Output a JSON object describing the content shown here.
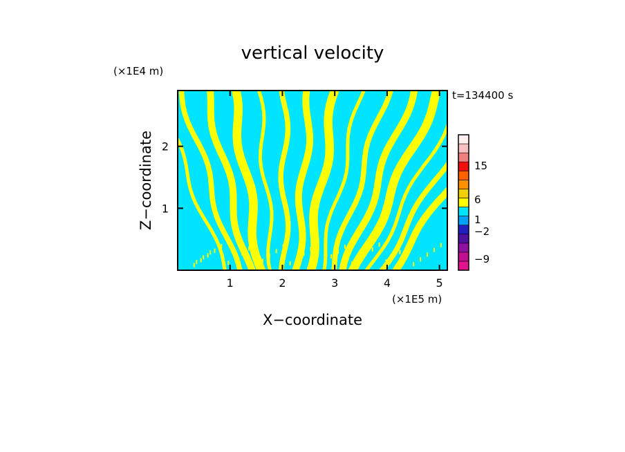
{
  "chart_data": {
    "type": "heatmap",
    "title": "vertical velocity",
    "xlabel": "X−coordinate",
    "ylabel": "Z−coordinate",
    "x_unit": "(×1E5 m)",
    "y_unit": "(×1E4 m)",
    "time_label": "t=134400 s",
    "xlim": [
      0,
      5.15
    ],
    "ylim": [
      0,
      2.9
    ],
    "x_ticks": [
      1,
      2,
      3,
      4,
      5
    ],
    "y_ticks": [
      1,
      2
    ],
    "field_colors": {
      "positive": "#ffff00",
      "negative": "#00e5ff"
    },
    "colorbar": {
      "tick_labels": [
        "15",
        "6",
        "1",
        "−2",
        "−9"
      ],
      "levels": [
        {
          "color": "#e0148c"
        },
        {
          "color": "#c01090"
        },
        {
          "color": "#9010a0"
        },
        {
          "color": "#5010a0"
        },
        {
          "color": "#2020c0"
        },
        {
          "color": "#00a0ff"
        },
        {
          "color": "#00e5ff"
        },
        {
          "color": "#ffff00"
        },
        {
          "color": "#f0d000"
        },
        {
          "color": "#ff9000"
        },
        {
          "color": "#ff6000"
        },
        {
          "color": "#f01010"
        },
        {
          "color": "#f08080"
        },
        {
          "color": "#f8c0c0"
        },
        {
          "color": "#fff0f0"
        }
      ]
    }
  }
}
